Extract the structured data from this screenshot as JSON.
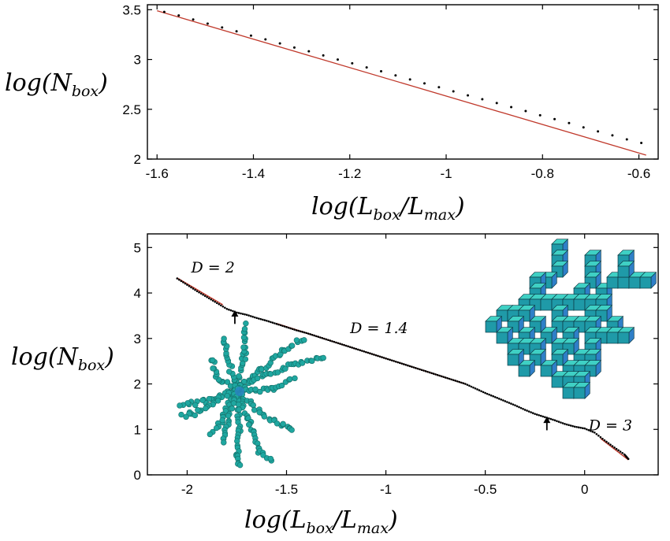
{
  "chart_data": [
    {
      "type": "scatter",
      "x": [
        -1.585,
        -1.555,
        -1.525,
        -1.495,
        -1.465,
        -1.435,
        -1.405,
        -1.375,
        -1.345,
        -1.315,
        -1.285,
        -1.255,
        -1.225,
        -1.195,
        -1.165,
        -1.135,
        -1.105,
        -1.075,
        -1.045,
        -1.015,
        -0.985,
        -0.955,
        -0.925,
        -0.895,
        -0.865,
        -0.835,
        -0.805,
        -0.775,
        -0.745,
        -0.715,
        -0.685,
        -0.655,
        -0.625,
        -0.595
      ],
      "y": [
        3.478,
        3.442,
        3.402,
        3.36,
        3.322,
        3.283,
        3.24,
        3.202,
        3.162,
        3.12,
        3.082,
        3.041,
        2.999,
        2.962,
        2.92,
        2.882,
        2.84,
        2.8,
        2.76,
        2.722,
        2.68,
        2.64,
        2.601,
        2.562,
        2.522,
        2.482,
        2.44,
        2.401,
        2.362,
        2.318,
        2.278,
        2.238,
        2.198,
        2.162
      ],
      "fit_line": {
        "x": [
          -1.6,
          -0.585
        ],
        "y": [
          3.49,
          2.04
        ]
      },
      "xlabel_base": "log(L",
      "xlabel_sub": "box",
      "xlabel_mid": "/L",
      "xlabel_sub2": "max",
      "xlabel_end": ")",
      "ylabel_base": "log(N",
      "ylabel_sub": "box",
      "ylabel_end": ")",
      "xlim": [
        -1.62,
        -0.56
      ],
      "ylim": [
        2.0,
        3.55
      ],
      "xticks": [
        -1.6,
        -1.4,
        -1.2,
        -1.0,
        -0.8,
        -0.6
      ],
      "xtick_labels": [
        "-1.6",
        "-1.4",
        "-1.2",
        "-1",
        "-0.8",
        "-0.6"
      ],
      "yticks": [
        2.0,
        2.5,
        3.0,
        3.5
      ],
      "ytick_labels": [
        "2",
        "2.5",
        "3",
        "3.5"
      ],
      "grid": false
    },
    {
      "type": "scatter",
      "x": [
        -2.05,
        -2.0,
        -1.95,
        -1.9,
        -1.85,
        -1.8,
        -1.75,
        -1.7,
        -1.65,
        -1.6,
        -1.55,
        -1.5,
        -1.45,
        -1.4,
        -1.35,
        -1.3,
        -1.25,
        -1.2,
        -1.15,
        -1.1,
        -1.05,
        -1.0,
        -0.95,
        -0.9,
        -0.85,
        -0.8,
        -0.75,
        -0.7,
        -0.65,
        -0.6,
        -0.55,
        -0.5,
        -0.45,
        -0.4,
        -0.35,
        -0.3,
        -0.25,
        -0.2,
        -0.15,
        -0.1,
        -0.05,
        0.0,
        0.05,
        0.1,
        0.15,
        0.2,
        0.22
      ],
      "y": [
        4.32,
        4.18,
        4.04,
        3.91,
        3.78,
        3.65,
        3.57,
        3.52,
        3.45,
        3.39,
        3.32,
        3.25,
        3.18,
        3.12,
        3.05,
        2.98,
        2.91,
        2.84,
        2.77,
        2.7,
        2.63,
        2.56,
        2.49,
        2.42,
        2.35,
        2.28,
        2.21,
        2.14,
        2.07,
        2.0,
        1.9,
        1.8,
        1.71,
        1.62,
        1.53,
        1.43,
        1.34,
        1.27,
        1.2,
        1.12,
        1.06,
        1.02,
        0.93,
        0.76,
        0.6,
        0.45,
        0.35
      ],
      "fit_segments": [
        {
          "x": [
            -2.05,
            -1.82
          ],
          "y": [
            4.33,
            3.74
          ]
        },
        {
          "x": [
            -1.55,
            -0.6
          ],
          "y": [
            3.33,
            2.0
          ]
        },
        {
          "x": [
            0.08,
            0.22
          ],
          "y": [
            0.8,
            0.33
          ]
        }
      ],
      "arrows": [
        {
          "x": -1.76,
          "y_tip": 3.62,
          "y_tail": 3.32
        },
        {
          "x": -0.19,
          "y_tip": 1.28,
          "y_tail": 0.98
        }
      ],
      "annotations": [
        {
          "text": "D = 2",
          "x": -1.98,
          "y": 4.45
        },
        {
          "text": "D = 1.4",
          "x": -1.18,
          "y": 3.12
        },
        {
          "text": "D = 3",
          "x": 0.02,
          "y": 0.98
        }
      ],
      "xlabel_base": "log(L",
      "xlabel_sub": "box",
      "xlabel_mid": "/L",
      "xlabel_sub2": "max",
      "xlabel_end": ")",
      "ylabel_base": "log(N",
      "ylabel_sub": "box",
      "ylabel_end": ")",
      "xlim": [
        -2.2,
        0.37
      ],
      "ylim": [
        0.0,
        5.3
      ],
      "xticks": [
        -2.0,
        -1.5,
        -1.0,
        -0.5,
        0.0
      ],
      "xtick_labels": [
        "-2",
        "-1.5",
        "-1",
        "-0.5",
        "0"
      ],
      "yticks": [
        0,
        1,
        2,
        3,
        4,
        5
      ],
      "ytick_labels": [
        "0",
        "1",
        "2",
        "3",
        "4",
        "5"
      ],
      "grid": false,
      "insets": [
        "branched-cluster-image",
        "cube-cluster-image"
      ]
    }
  ],
  "colors": {
    "points": "#000000",
    "fit_line": "#c0392b",
    "cluster_fill": "#1fa7a0",
    "cluster_shade": "#2a83c4",
    "cube_top": "#3fd0c4",
    "cube_front": "#1f9aa8",
    "cube_side": "#2f7fc8"
  }
}
